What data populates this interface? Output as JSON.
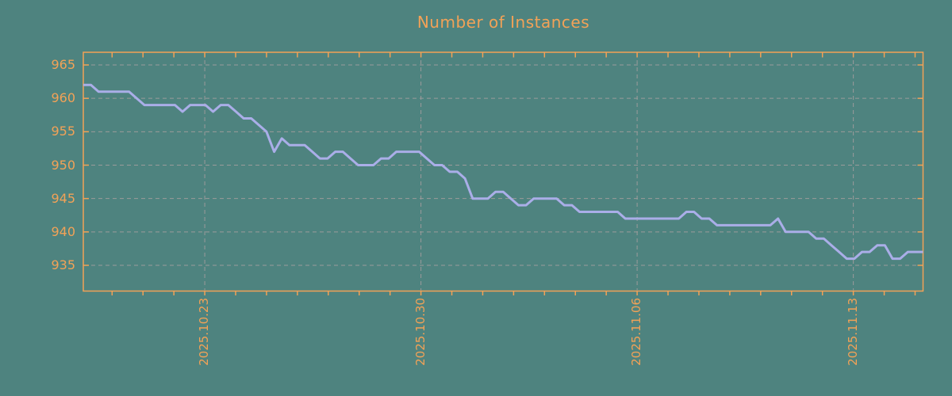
{
  "title": "Number of Instances",
  "colors": {
    "background": "#4e837f",
    "accent_orange": "#f2a257",
    "line_lavender": "#aaaee8",
    "grid_gray": "#9b9b9b"
  },
  "chart_data": {
    "type": "line",
    "title": "Number of Instances",
    "xlabel": "",
    "ylabel": "",
    "legend": "none",
    "grid": "dashed gray, weekly vertical lines and horizontal lines every 5 units",
    "ylim": [
      931,
      967
    ],
    "y_ticks": [
      965,
      960,
      955,
      950,
      945,
      940,
      935
    ],
    "x_tick_labels": [
      "2025.10.23",
      "2025.10.30",
      "2025.11.06",
      "2025.11.13"
    ],
    "x_minor_tick_interval": "1 day",
    "x_major_gridline_interval": "7 days",
    "sampling": "4 samples per day (6-hour interval), span approx 2025.10.19 - 2025.11.15",
    "series": [
      {
        "name": "instances",
        "values": [
          962,
          962,
          961,
          961,
          961,
          961,
          961,
          960,
          959,
          959,
          959,
          959,
          959,
          958,
          959,
          959,
          959,
          958,
          959,
          959,
          958,
          957,
          957,
          956,
          955,
          952,
          954,
          953,
          953,
          953,
          952,
          951,
          951,
          952,
          952,
          951,
          950,
          950,
          950,
          951,
          951,
          952,
          952,
          952,
          952,
          951,
          950,
          950,
          949,
          949,
          948,
          945,
          945,
          945,
          946,
          946,
          945,
          944,
          944,
          945,
          945,
          945,
          945,
          944,
          944,
          943,
          943,
          943,
          943,
          943,
          943,
          942,
          942,
          942,
          942,
          942,
          942,
          942,
          942,
          943,
          943,
          942,
          942,
          941,
          941,
          941,
          941,
          941,
          941,
          941,
          941,
          942,
          940,
          940,
          940,
          940,
          939,
          939,
          938,
          937,
          936,
          936,
          937,
          937,
          938,
          938,
          936,
          936,
          937,
          937,
          937
        ]
      }
    ]
  }
}
